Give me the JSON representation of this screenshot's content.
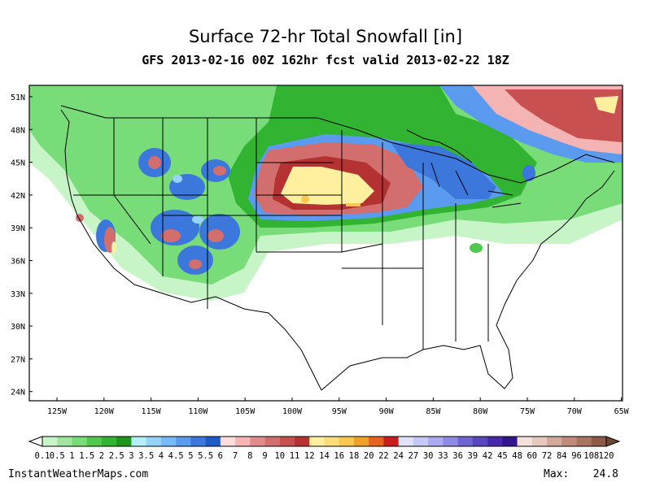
{
  "header": {
    "title": "Surface 72-hr Total Snowfall [in]",
    "subtitle": "GFS 2013-02-16 00Z 162hr fcst valid 2013-02-22 18Z"
  },
  "map": {
    "lat_labels": [
      "51N",
      "48N",
      "45N",
      "42N",
      "39N",
      "36N",
      "33N",
      "30N",
      "27N",
      "24N"
    ],
    "lon_labels": [
      "125W",
      "120W",
      "115W",
      "110W",
      "105W",
      "100W",
      "95W",
      "90W",
      "85W",
      "80W",
      "75W",
      "70W",
      "65W"
    ]
  },
  "colorbar": {
    "labels": [
      "0.1",
      "0.5",
      "1",
      "1.5",
      "2",
      "2.5",
      "3",
      "3.5",
      "4",
      "4.5",
      "5",
      "5.5",
      "6",
      "7",
      "8",
      "9",
      "10",
      "11",
      "12",
      "14",
      "16",
      "18",
      "20",
      "22",
      "24",
      "27",
      "30",
      "33",
      "36",
      "39",
      "42",
      "45",
      "48",
      "60",
      "72",
      "84",
      "96",
      "108",
      "120"
    ],
    "colors": [
      "#c8f5c8",
      "#a0e6a0",
      "#78dc78",
      "#50c850",
      "#32b432",
      "#1e961e",
      "#b4f0fa",
      "#96d2fa",
      "#78b9fa",
      "#5a9bf0",
      "#3c78dc",
      "#1e5ac8",
      "#ffdcdc",
      "#f5b4b4",
      "#e18c8c",
      "#d26e6e",
      "#c85050",
      "#b43232",
      "#fff0a0",
      "#fadc78",
      "#fac850",
      "#f0a028",
      "#e6641e",
      "#c81e1e",
      "#e1e1fa",
      "#c8c8f5",
      "#aaaaf0",
      "#8c8ce6",
      "#7064d2",
      "#5a46be",
      "#4628aa",
      "#32148c",
      "#f5e1dc",
      "#e6c8be",
      "#d2aa9b",
      "#be8c78",
      "#aa7362",
      "#8c5a46"
    ]
  },
  "footer": {
    "site": "InstantWeatherMaps.com",
    "max_label": "Max:",
    "max_value": 24.8
  }
}
